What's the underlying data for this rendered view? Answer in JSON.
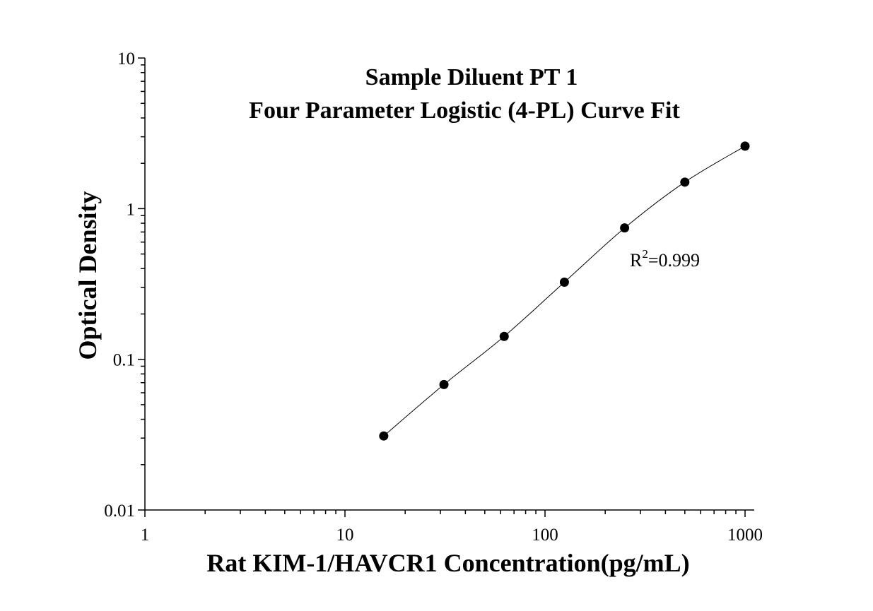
{
  "chart_data": {
    "type": "scatter",
    "title": "Sample Diluent PT 1",
    "subtitle": "Four Parameter Logistic (4-PL) Curve Fit",
    "xlabel": "Rat KIM-1/HAVCR1 Concentration(pg/mL)",
    "ylabel": "Optical Density",
    "xscale": "log",
    "yscale": "log",
    "xlim": [
      1,
      1150
    ],
    "ylim": [
      0.01,
      10
    ],
    "x_ticks": [
      1,
      10,
      100,
      1000
    ],
    "x_tick_labels": [
      "1",
      "10",
      "100",
      "1000"
    ],
    "y_ticks": [
      0.01,
      0.1,
      1,
      10
    ],
    "y_tick_labels": [
      "0.01",
      "0.1",
      "1",
      "10"
    ],
    "grid": false,
    "legend": "none",
    "series": [
      {
        "x": [
          15.625,
          31.25,
          62.5,
          125,
          250,
          500,
          1000
        ],
        "y": [
          0.031,
          0.068,
          0.142,
          0.325,
          0.745,
          1.5,
          2.6
        ]
      }
    ],
    "fit_curve": "4-PL",
    "annotation": {
      "r_label": "R",
      "r_sup": "2",
      "r_value": "=0.999"
    }
  }
}
